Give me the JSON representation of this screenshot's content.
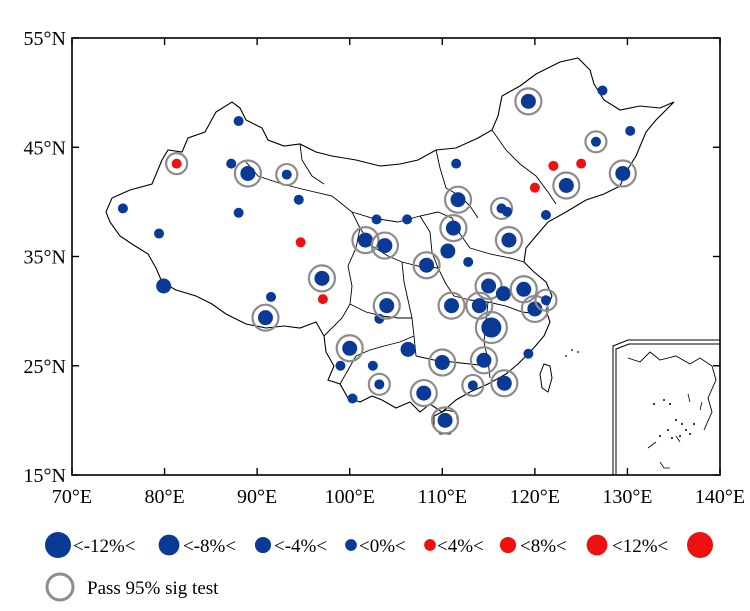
{
  "map": {
    "lon_range": [
      70,
      140
    ],
    "lat_range": [
      15,
      55
    ],
    "x_ticks": [
      {
        "value": 70,
        "label": "70°E"
      },
      {
        "value": 80,
        "label": "80°E"
      },
      {
        "value": 90,
        "label": "90°E"
      },
      {
        "value": 100,
        "label": "100°E"
      },
      {
        "value": 110,
        "label": "110°E"
      },
      {
        "value": 120,
        "label": "120°E"
      },
      {
        "value": 130,
        "label": "130°E"
      },
      {
        "value": 140,
        "label": "140°E"
      }
    ],
    "y_ticks": [
      {
        "value": 15,
        "label": "15°N"
      },
      {
        "value": 25,
        "label": "25°N"
      },
      {
        "value": 35,
        "label": "35°N"
      },
      {
        "value": 45,
        "label": "45°N"
      },
      {
        "value": 55,
        "label": "55°N"
      }
    ],
    "colors": {
      "negative": "#0a3a96",
      "positive": "#ee1111",
      "sig_ring": "#8c8c8c",
      "outline": "#000000"
    },
    "stations": [
      {
        "lon": 75.5,
        "lat": 39.4,
        "cls": 4,
        "sig": false
      },
      {
        "lon": 79.4,
        "lat": 37.1,
        "cls": 4,
        "sig": false
      },
      {
        "lon": 79.9,
        "lat": 32.3,
        "cls": 3,
        "sig": false
      },
      {
        "lon": 81.3,
        "lat": 43.5,
        "cls": 5,
        "sig": true
      },
      {
        "lon": 87.2,
        "lat": 43.5,
        "cls": 4,
        "sig": false
      },
      {
        "lon": 88.0,
        "lat": 47.4,
        "cls": 4,
        "sig": false
      },
      {
        "lon": 88.0,
        "lat": 39.0,
        "cls": 4,
        "sig": false
      },
      {
        "lon": 89.0,
        "lat": 42.6,
        "cls": 3,
        "sig": true
      },
      {
        "lon": 93.2,
        "lat": 42.5,
        "cls": 4,
        "sig": true
      },
      {
        "lon": 94.5,
        "lat": 40.2,
        "cls": 4,
        "sig": false
      },
      {
        "lon": 94.7,
        "lat": 36.3,
        "cls": 5,
        "sig": false
      },
      {
        "lon": 91.5,
        "lat": 31.3,
        "cls": 4,
        "sig": false
      },
      {
        "lon": 90.9,
        "lat": 29.4,
        "cls": 3,
        "sig": true
      },
      {
        "lon": 97.0,
        "lat": 33.0,
        "cls": 3,
        "sig": true
      },
      {
        "lon": 97.1,
        "lat": 31.1,
        "cls": 5,
        "sig": false
      },
      {
        "lon": 102.9,
        "lat": 38.4,
        "cls": 4,
        "sig": false
      },
      {
        "lon": 101.7,
        "lat": 36.5,
        "cls": 3,
        "sig": true
      },
      {
        "lon": 103.8,
        "lat": 36.0,
        "cls": 3,
        "sig": true
      },
      {
        "lon": 106.2,
        "lat": 38.4,
        "cls": 4,
        "sig": false
      },
      {
        "lon": 111.7,
        "lat": 40.2,
        "cls": 3,
        "sig": true
      },
      {
        "lon": 111.2,
        "lat": 37.6,
        "cls": 3,
        "sig": true
      },
      {
        "lon": 108.3,
        "lat": 34.2,
        "cls": 3,
        "sig": true
      },
      {
        "lon": 110.6,
        "lat": 35.5,
        "cls": 3,
        "sig": false
      },
      {
        "lon": 111.5,
        "lat": 43.5,
        "cls": 4,
        "sig": false
      },
      {
        "lon": 116.4,
        "lat": 39.4,
        "cls": 4,
        "sig": true
      },
      {
        "lon": 117.2,
        "lat": 36.5,
        "cls": 3,
        "sig": true
      },
      {
        "lon": 117.0,
        "lat": 39.1,
        "cls": 4,
        "sig": false
      },
      {
        "lon": 119.3,
        "lat": 49.2,
        "cls": 3,
        "sig": true
      },
      {
        "lon": 126.6,
        "lat": 45.5,
        "cls": 4,
        "sig": true
      },
      {
        "lon": 123.4,
        "lat": 41.5,
        "cls": 3,
        "sig": true
      },
      {
        "lon": 129.5,
        "lat": 42.6,
        "cls": 3,
        "sig": true
      },
      {
        "lon": 127.3,
        "lat": 50.2,
        "cls": 4,
        "sig": false
      },
      {
        "lon": 130.3,
        "lat": 46.5,
        "cls": 4,
        "sig": false
      },
      {
        "lon": 122.0,
        "lat": 43.3,
        "cls": 5,
        "sig": false
      },
      {
        "lon": 125.0,
        "lat": 43.5,
        "cls": 5,
        "sig": false
      },
      {
        "lon": 120.0,
        "lat": 41.3,
        "cls": 5,
        "sig": false
      },
      {
        "lon": 121.2,
        "lat": 38.8,
        "cls": 4,
        "sig": false
      },
      {
        "lon": 103.2,
        "lat": 29.3,
        "cls": 4,
        "sig": false
      },
      {
        "lon": 104.0,
        "lat": 30.5,
        "cls": 3,
        "sig": true
      },
      {
        "lon": 100.0,
        "lat": 26.6,
        "cls": 3,
        "sig": true
      },
      {
        "lon": 102.5,
        "lat": 25.0,
        "cls": 4,
        "sig": false
      },
      {
        "lon": 99.0,
        "lat": 25.0,
        "cls": 4,
        "sig": false
      },
      {
        "lon": 100.3,
        "lat": 22.0,
        "cls": 4,
        "sig": false
      },
      {
        "lon": 103.2,
        "lat": 23.3,
        "cls": 4,
        "sig": true
      },
      {
        "lon": 106.3,
        "lat": 26.5,
        "cls": 3,
        "sig": false
      },
      {
        "lon": 110.0,
        "lat": 25.3,
        "cls": 3,
        "sig": true
      },
      {
        "lon": 108.0,
        "lat": 22.5,
        "cls": 3,
        "sig": true
      },
      {
        "lon": 111.0,
        "lat": 30.5,
        "cls": 3,
        "sig": true
      },
      {
        "lon": 112.8,
        "lat": 34.5,
        "cls": 4,
        "sig": false
      },
      {
        "lon": 114.0,
        "lat": 30.5,
        "cls": 3,
        "sig": true
      },
      {
        "lon": 115.0,
        "lat": 32.3,
        "cls": 3,
        "sig": true
      },
      {
        "lon": 116.6,
        "lat": 31.6,
        "cls": 3,
        "sig": false
      },
      {
        "lon": 118.8,
        "lat": 32.0,
        "cls": 3,
        "sig": true
      },
      {
        "lon": 115.3,
        "lat": 28.5,
        "cls": 2,
        "sig": true
      },
      {
        "lon": 120.0,
        "lat": 30.2,
        "cls": 3,
        "sig": true
      },
      {
        "lon": 121.2,
        "lat": 31.0,
        "cls": 4,
        "sig": true
      },
      {
        "lon": 114.5,
        "lat": 25.5,
        "cls": 3,
        "sig": true
      },
      {
        "lon": 113.3,
        "lat": 23.2,
        "cls": 4,
        "sig": true
      },
      {
        "lon": 116.7,
        "lat": 23.4,
        "cls": 3,
        "sig": true
      },
      {
        "lon": 119.3,
        "lat": 26.1,
        "cls": 4,
        "sig": false
      },
      {
        "lon": 110.3,
        "lat": 20.0,
        "cls": 3,
        "sig": true
      }
    ]
  },
  "legend": {
    "boundary_labels": [
      "<-12%<",
      "<-8%<",
      "<-4%<",
      "<0%<",
      "<4%<",
      "<8%<",
      "<12%<"
    ],
    "classes": [
      {
        "sign": "negative",
        "size": 1.0
      },
      {
        "sign": "negative",
        "size": 0.8
      },
      {
        "sign": "negative",
        "size": 0.62
      },
      {
        "sign": "negative",
        "size": 0.45
      },
      {
        "sign": "positive",
        "size": 0.45
      },
      {
        "sign": "positive",
        "size": 0.62
      },
      {
        "sign": "positive",
        "size": 0.8
      },
      {
        "sign": "positive",
        "size": 1.0
      }
    ],
    "sig_label": "Pass 95% sig test"
  }
}
